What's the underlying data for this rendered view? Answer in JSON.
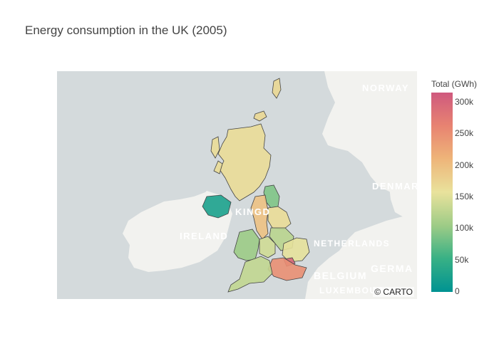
{
  "title": "Energy consumption in the UK (2005)",
  "attribution": "© CARTO",
  "map_labels": {
    "norway": "NORWAY",
    "denmark": "DENMAR",
    "ireland": "IRELAND",
    "netherlands": "NETHERLANDS",
    "belgium": "BELGIUM",
    "germany": "GERMA",
    "luxembourg": "LUXEMBOURG",
    "kingdom": "KINGD"
  },
  "legend": {
    "title": "Total (GWh)",
    "ticks": [
      "0",
      "50k",
      "100k",
      "150k",
      "200k",
      "250k",
      "300k"
    ],
    "max": 315000,
    "colorscale": [
      "#009B9E",
      "#42B7B9",
      "#A7D3D4",
      "#F1F1F1",
      "#E4C1D9",
      "#D691C1",
      "#C75DAB"
    ]
  },
  "colors": {
    "colorscale_used": [
      "#009392",
      "#39b185",
      "#9ccb86",
      "#e9e29c",
      "#eeb479",
      "#e88471",
      "#cf597e"
    ],
    "ocean": "#d4dadc",
    "land": "#f2f2ef"
  },
  "chart_data": {
    "type": "choropleth",
    "title": "Energy consumption in the UK (2005)",
    "colorbar_title": "Total (GWh)",
    "range": [
      0,
      315000
    ],
    "regions": [
      {
        "name": "Scotland",
        "value": 165000
      },
      {
        "name": "North East",
        "value": 90000
      },
      {
        "name": "North West",
        "value": 195000
      },
      {
        "name": "Yorkshire and the Humber",
        "value": 165000
      },
      {
        "name": "East Midlands",
        "value": 125000
      },
      {
        "name": "West Midlands",
        "value": 140000
      },
      {
        "name": "Wales",
        "value": 105000
      },
      {
        "name": "East of England",
        "value": 155000
      },
      {
        "name": "London",
        "value": 300000
      },
      {
        "name": "South East",
        "value": 250000
      },
      {
        "name": "South West",
        "value": 130000
      },
      {
        "name": "Northern Ireland",
        "value": 25000
      },
      {
        "name": "Orkney",
        "value": 170000
      },
      {
        "name": "Shetland",
        "value": 170000
      }
    ]
  }
}
